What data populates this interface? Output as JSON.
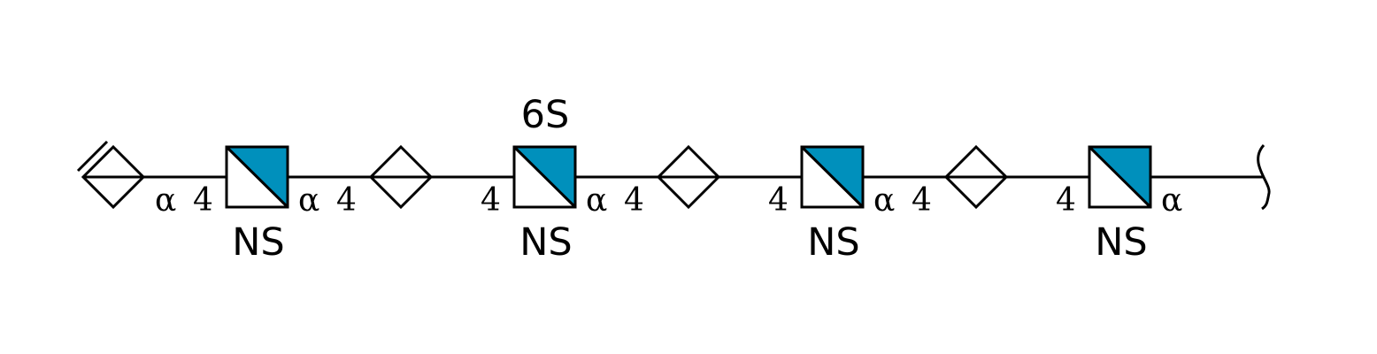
{
  "colors": {
    "glcn_fill": "#0090BC",
    "line": "#000000",
    "background": "#FFFFFF"
  },
  "residues": [
    {
      "type": "uronic-acid",
      "symbol": "diamond-split-horizontal",
      "unsaturated": true
    },
    {
      "type": "glcn",
      "symbol": "square-split-diagonal",
      "substituent_below": "NS",
      "substituent_above": ""
    },
    {
      "type": "uronic-acid",
      "symbol": "diamond-split-horizontal"
    },
    {
      "type": "glcn",
      "symbol": "square-split-diagonal",
      "substituent_below": "NS",
      "substituent_above": "6S"
    },
    {
      "type": "uronic-acid",
      "symbol": "diamond-split-horizontal"
    },
    {
      "type": "glcn",
      "symbol": "square-split-diagonal",
      "substituent_below": "NS",
      "substituent_above": ""
    },
    {
      "type": "uronic-acid",
      "symbol": "diamond-split-horizontal"
    },
    {
      "type": "glcn",
      "symbol": "square-split-diagonal",
      "substituent_below": "NS",
      "substituent_above": ""
    }
  ],
  "linkages": [
    {
      "anomer": "α",
      "position": "4"
    },
    {
      "anomer": "α",
      "position": "4"
    },
    {
      "anomer": "",
      "position": "4"
    },
    {
      "anomer": "α",
      "position": "4"
    },
    {
      "anomer": "",
      "position": "4"
    },
    {
      "anomer": "α",
      "position": "4"
    },
    {
      "anomer": "",
      "position": "4"
    },
    {
      "anomer": "α",
      "position": ""
    }
  ],
  "reducing_end": "bracket"
}
